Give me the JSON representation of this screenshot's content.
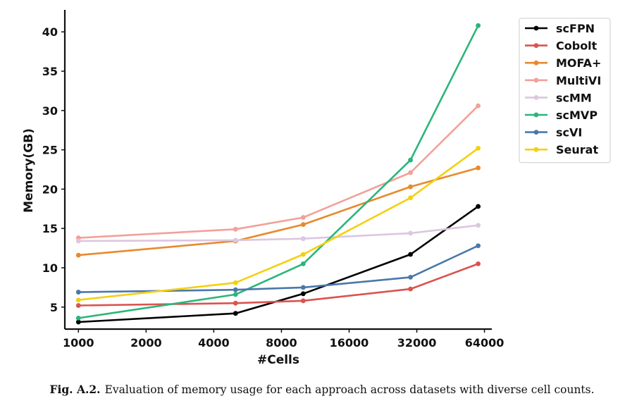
{
  "chart_data": {
    "type": "line",
    "title": "",
    "xlabel": "#Cells",
    "ylabel": "Memory(GB)",
    "x_scale": "log2",
    "x": [
      1000,
      5000,
      10000,
      30000,
      60000
    ],
    "x_ticks": [
      1000,
      2000,
      4000,
      8000,
      16000,
      32000,
      64000
    ],
    "x_tick_labels": [
      "1000",
      "2000",
      "4000",
      "8000",
      "16000",
      "32000",
      "64000"
    ],
    "y_ticks": [
      5,
      10,
      15,
      20,
      25,
      30,
      35,
      40
    ],
    "y_tick_labels": [
      "5",
      "10",
      "15",
      "20",
      "25",
      "30",
      "35",
      "40"
    ],
    "ylim": [
      2.2,
      42.8
    ],
    "xlim": [
      870,
      69000
    ],
    "legend_position": "upper-right-outside",
    "series": [
      {
        "name": "scFPN",
        "color": "#000000",
        "values": [
          3.1,
          4.2,
          6.7,
          11.7,
          17.8
        ]
      },
      {
        "name": "Cobolt",
        "color": "#d9534f",
        "values": [
          5.2,
          5.5,
          5.8,
          7.3,
          10.5
        ]
      },
      {
        "name": "MOFA+",
        "color": "#e8892b",
        "values": [
          11.6,
          13.4,
          15.5,
          20.3,
          22.7
        ]
      },
      {
        "name": "MultiVI",
        "color": "#f4a09a",
        "values": [
          13.8,
          14.9,
          16.4,
          22.1,
          30.6
        ]
      },
      {
        "name": "scMM",
        "color": "#dcc6e0",
        "values": [
          13.4,
          13.5,
          13.7,
          14.4,
          15.4
        ]
      },
      {
        "name": "scMVP",
        "color": "#2bb57a",
        "values": [
          3.6,
          6.6,
          10.5,
          23.7,
          40.8
        ]
      },
      {
        "name": "scVI",
        "color": "#4a78aa",
        "values": [
          6.9,
          7.2,
          7.5,
          8.8,
          12.8
        ]
      },
      {
        "name": "Seurat",
        "color": "#f5d010",
        "values": [
          5.9,
          8.1,
          11.7,
          18.9,
          25.2
        ]
      }
    ]
  },
  "caption": {
    "label": "Fig. A.2.",
    "text": "Evaluation of memory usage for each approach across datasets with diverse cell counts."
  }
}
